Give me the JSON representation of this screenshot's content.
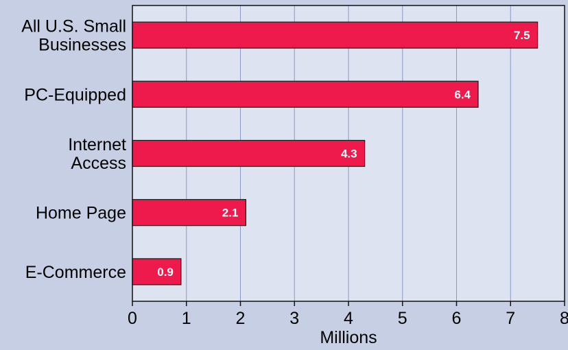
{
  "chart_data": {
    "type": "bar",
    "orientation": "horizontal",
    "categories": [
      [
        "All U.S. Small",
        "Businesses"
      ],
      [
        "PC-Equipped"
      ],
      [
        "Internet",
        "Access"
      ],
      [
        "Home Page"
      ],
      [
        "E-Commerce"
      ]
    ],
    "values": [
      7.5,
      6.4,
      4.3,
      2.1,
      0.9
    ],
    "value_labels": [
      "7.5",
      "6.4",
      "4.3",
      "2.1",
      "0.9"
    ],
    "xlabel": "Millions",
    "xlim": [
      0,
      8
    ],
    "xticks": [
      0,
      1,
      2,
      3,
      4,
      5,
      6,
      7,
      8
    ],
    "grid": "vertical",
    "colors": {
      "background": "#c6cfe4",
      "plot_background": "#dde3f1",
      "bar": "#ee1a4c",
      "gridline": "#8a98c8",
      "value_text": "#ffffff"
    }
  }
}
